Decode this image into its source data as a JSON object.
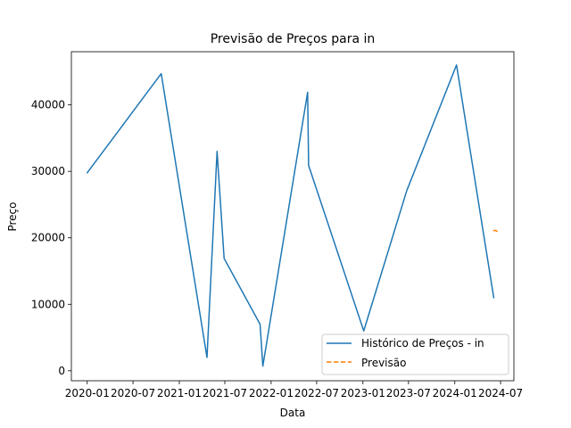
{
  "chart_data": {
    "type": "line",
    "title": "Previsão de Preços para in",
    "xlabel": "Data",
    "ylabel": "Preço",
    "x_axis_type": "date",
    "xlim": [
      "2019-10-30",
      "2024-08-23"
    ],
    "ylim": [
      -1500,
      48000
    ],
    "x_ticks": [
      {
        "date": "2020-01-01",
        "label": "2020-01"
      },
      {
        "date": "2020-07-01",
        "label": "2020-07"
      },
      {
        "date": "2021-01-01",
        "label": "2021-01"
      },
      {
        "date": "2021-07-01",
        "label": "2021-07"
      },
      {
        "date": "2022-01-01",
        "label": "2022-01"
      },
      {
        "date": "2022-07-01",
        "label": "2022-07"
      },
      {
        "date": "2023-01-01",
        "label": "2023-01"
      },
      {
        "date": "2023-07-01",
        "label": "2023-07"
      },
      {
        "date": "2024-01-01",
        "label": "2024-01"
      },
      {
        "date": "2024-07-01",
        "label": "2024-07"
      }
    ],
    "y_ticks": [
      {
        "value": 0,
        "label": "0"
      },
      {
        "value": 10000,
        "label": "10000"
      },
      {
        "value": 20000,
        "label": "20000"
      },
      {
        "value": 30000,
        "label": "30000"
      },
      {
        "value": 40000,
        "label": "40000"
      }
    ],
    "grid": false,
    "legend_position": "lower-right",
    "series": [
      {
        "name": "Histórico de Preços - in",
        "color": "#1f77b4",
        "style": "solid",
        "points": [
          {
            "x": "2020-01-01",
            "y": 29800
          },
          {
            "x": "2020-10-21",
            "y": 44700
          },
          {
            "x": "2021-04-21",
            "y": 2000
          },
          {
            "x": "2021-05-31",
            "y": 33000
          },
          {
            "x": "2021-06-28",
            "y": 16900
          },
          {
            "x": "2021-11-18",
            "y": 7000
          },
          {
            "x": "2021-11-29",
            "y": 700
          },
          {
            "x": "2022-05-26",
            "y": 41900
          },
          {
            "x": "2022-05-30",
            "y": 30900
          },
          {
            "x": "2023-01-04",
            "y": 6000
          },
          {
            "x": "2023-06-24",
            "y": 27100
          },
          {
            "x": "2024-01-08",
            "y": 46000
          },
          {
            "x": "2024-06-04",
            "y": 11000
          }
        ]
      },
      {
        "name": "Previsão",
        "color": "#ff7f0e",
        "style": "dashed",
        "points": [
          {
            "x": "2024-06-04",
            "y": 21100
          },
          {
            "x": "2024-06-10",
            "y": 21100
          },
          {
            "x": "2024-06-17",
            "y": 21000
          }
        ]
      }
    ]
  }
}
